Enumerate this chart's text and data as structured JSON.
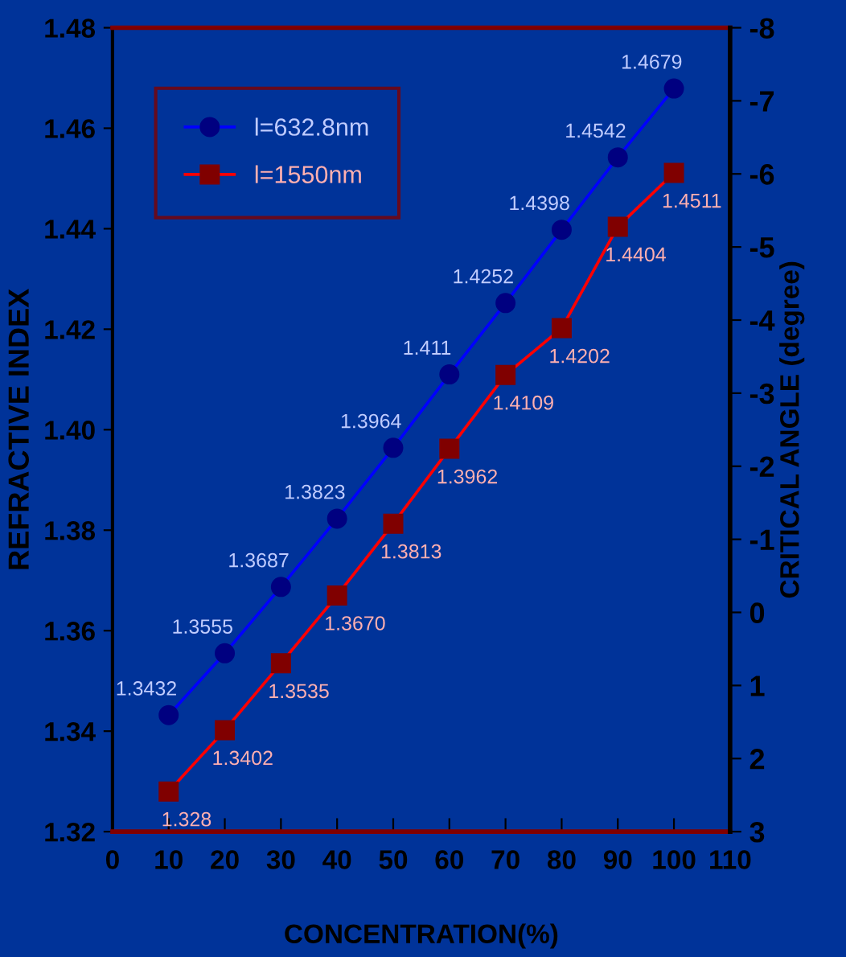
{
  "chart_data": {
    "type": "line",
    "xlabel": "CONCENTRATION(%)",
    "ylabel": "REFRACTIVE INDEX",
    "y2label": "CRITICAL ANGLE (degree)",
    "x": [
      10,
      20,
      30,
      40,
      50,
      60,
      70,
      80,
      90,
      100
    ],
    "series": [
      {
        "name": "l=632.8nm",
        "color": "#0000ff",
        "marker": "circle",
        "values": [
          1.3432,
          1.3555,
          1.3687,
          1.3823,
          1.3964,
          1.411,
          1.4252,
          1.4398,
          1.4542,
          1.4679
        ],
        "value_labels": [
          "1.3432",
          "1.3555",
          "1.3687",
          "1.3823",
          "1.3964",
          "1.411",
          "1.4252",
          "1.4398",
          "1.4542",
          "1.4679"
        ]
      },
      {
        "name": "l=1550nm",
        "color": "#ff0000",
        "marker": "square",
        "values": [
          1.328,
          1.3402,
          1.3535,
          1.367,
          1.3813,
          1.3962,
          1.4109,
          1.4202,
          1.4404,
          1.4511
        ],
        "value_labels": [
          "1.328",
          "1.3402",
          "1.3535",
          "1.3670",
          "1.3813",
          "1.3962",
          "1.4109",
          "1.4202",
          "1.4404",
          "1.4511"
        ]
      }
    ],
    "xlim": [
      0,
      110
    ],
    "xticks": [
      0,
      10,
      20,
      30,
      40,
      50,
      60,
      70,
      80,
      90,
      100,
      110
    ],
    "ylim": [
      1.32,
      1.48
    ],
    "yticks": [
      {
        "value": 1.32,
        "label": "1.32"
      },
      {
        "value": 1.34,
        "label": "1.34"
      },
      {
        "value": 1.36,
        "label": "1.36"
      },
      {
        "value": 1.38,
        "label": "1.38"
      },
      {
        "value": 1.4,
        "label": "1.40"
      },
      {
        "value": 1.42,
        "label": "1.42"
      },
      {
        "value": 1.44,
        "label": "1.44"
      },
      {
        "value": 1.46,
        "label": "1.46"
      },
      {
        "value": 1.48,
        "label": "1.48"
      }
    ],
    "y2lim": [
      3,
      -8
    ],
    "y2ticks": [
      -8,
      -7,
      -6,
      -5,
      -4,
      -3,
      -2,
      -1,
      0,
      1,
      2,
      3
    ],
    "grid": false,
    "legend": "top left",
    "line_style": "solid"
  }
}
